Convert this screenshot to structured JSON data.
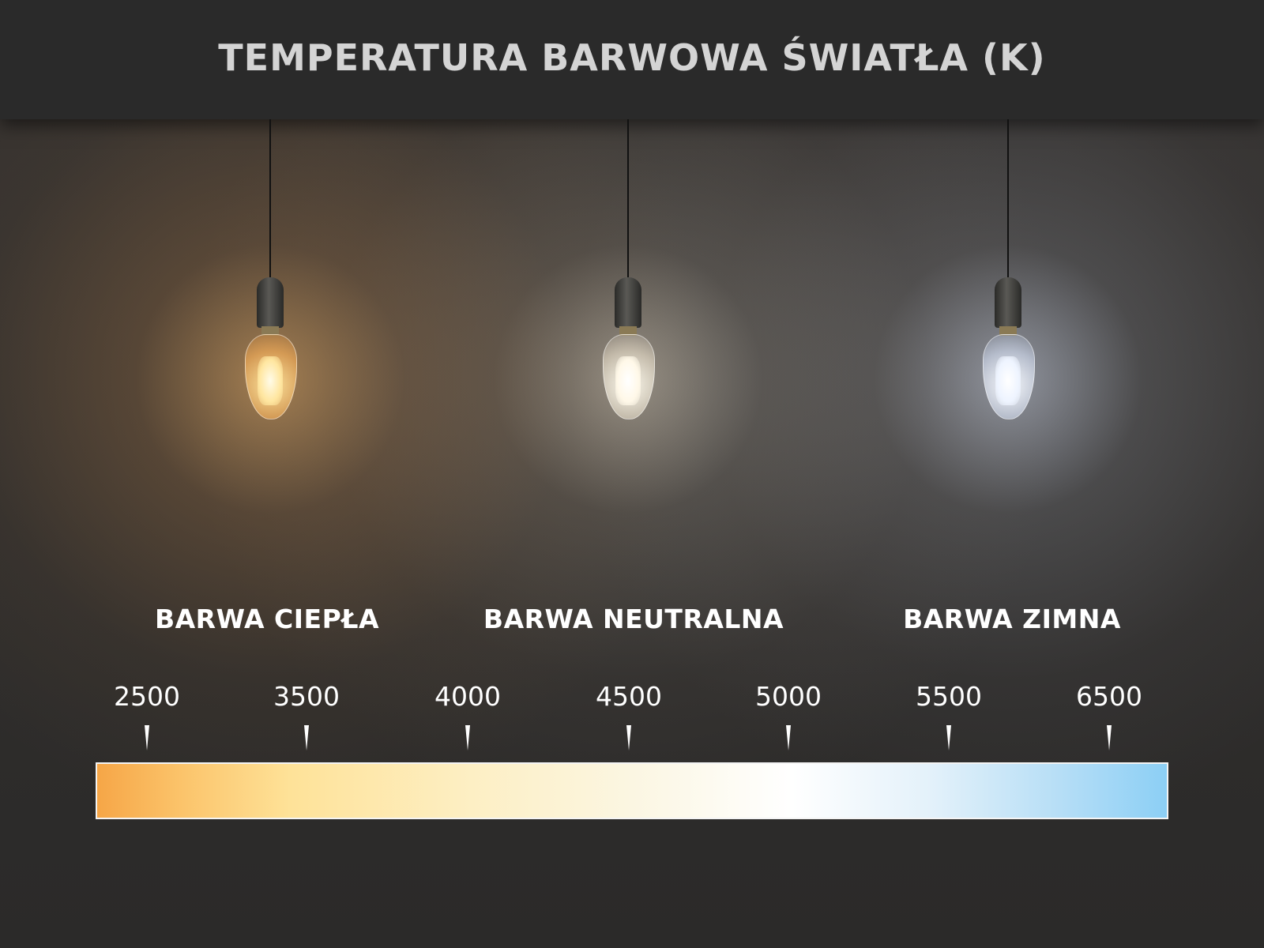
{
  "title": "TEMPERATURA BARWOWA ŚWIATŁA (K)",
  "categories": [
    {
      "label": "BARWA CIEPŁA",
      "light_color": "#ffc070"
    },
    {
      "label": "BARWA NEUTRALNA",
      "light_color": "#fff4dc"
    },
    {
      "label": "BARWA ZIMNA",
      "light_color": "#e2ecff"
    }
  ],
  "scale": {
    "unit": "K",
    "ticks": [
      "2500",
      "3500",
      "4000",
      "4500",
      "5000",
      "5500",
      "6500"
    ],
    "gradient_colors": [
      "#f6a647",
      "#fee298",
      "#ffffff",
      "#8ccff5"
    ]
  }
}
